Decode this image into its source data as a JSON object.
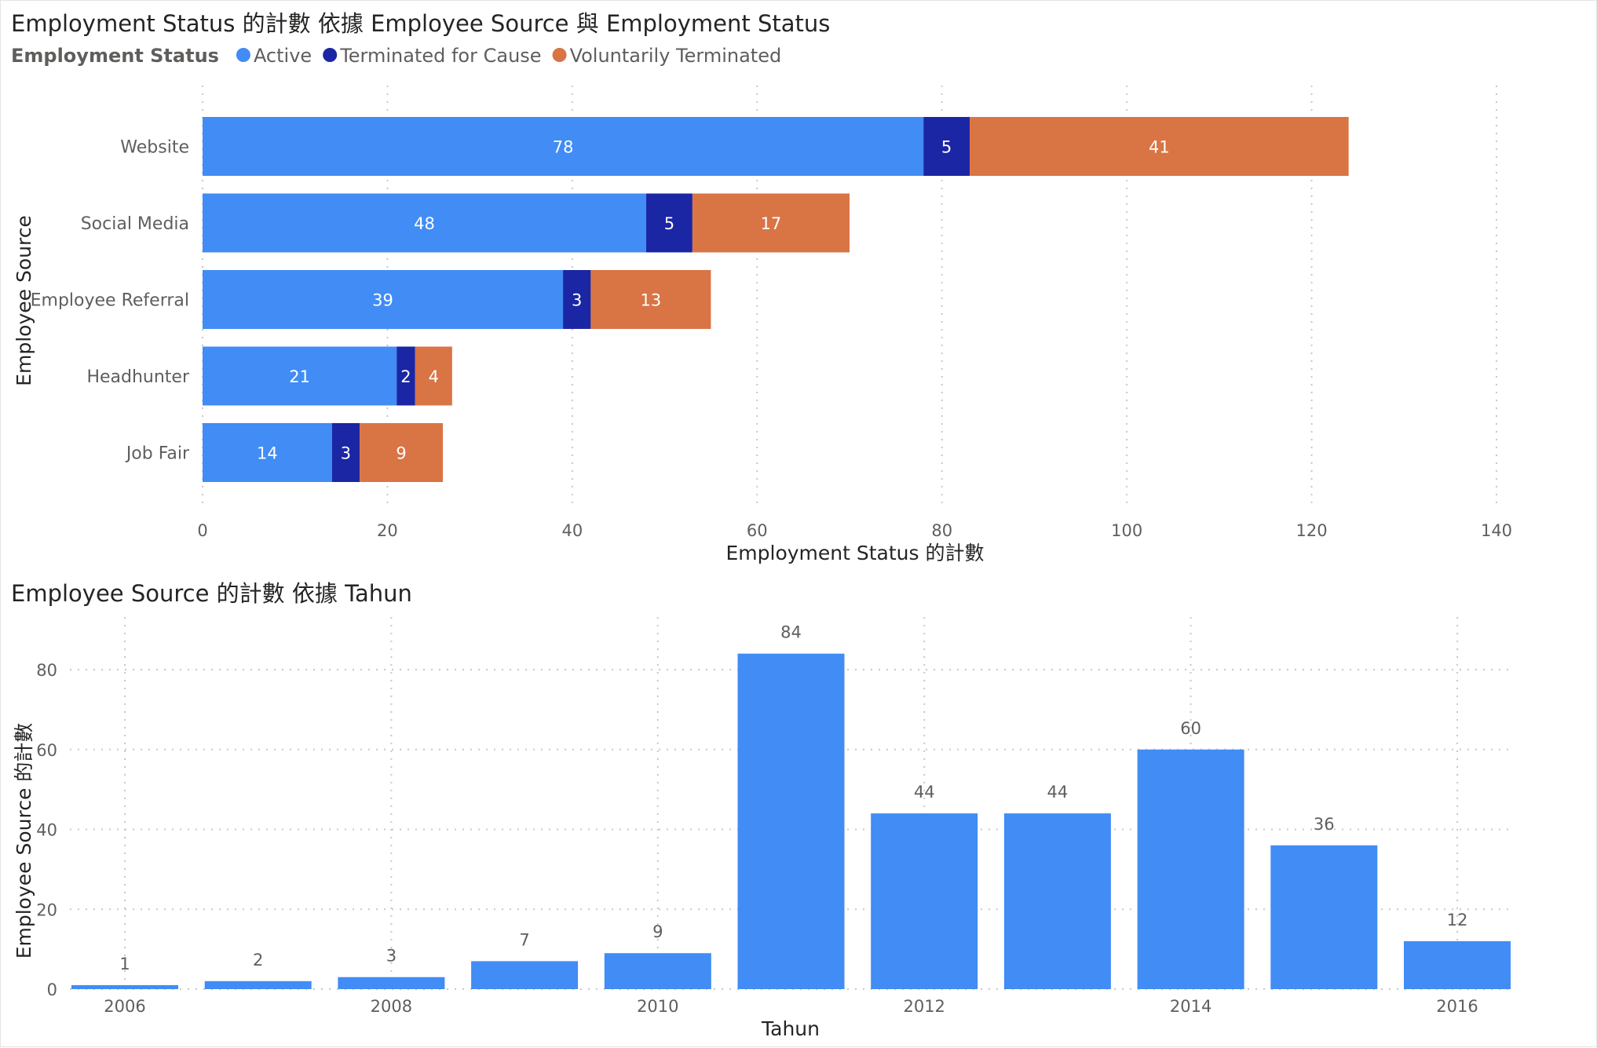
{
  "colors": {
    "active": "#418cf5",
    "terminated_for_cause": "#1b26a4",
    "voluntarily_terminated": "#d97445",
    "columns": "#418cf5"
  },
  "legend": {
    "title": "Employment Status",
    "items": [
      {
        "label": "Active",
        "color": "#418cf5"
      },
      {
        "label": "Terminated for Cause",
        "color": "#1b26a4"
      },
      {
        "label": "Voluntarily Terminated",
        "color": "#d97445"
      }
    ]
  },
  "chart_data": [
    {
      "type": "bar",
      "orientation": "horizontal",
      "stacked": true,
      "title": "Employment Status 的計數 依據 Employee Source 與 Employment Status",
      "xlabel": "Employment Status 的計數",
      "ylabel": "Employee Source",
      "categories": [
        "Website",
        "Social Media",
        "Employee Referral",
        "Headhunter",
        "Job Fair"
      ],
      "series": [
        {
          "name": "Active",
          "values": [
            78,
            48,
            39,
            21,
            14
          ]
        },
        {
          "name": "Terminated for Cause",
          "values": [
            5,
            5,
            3,
            2,
            3
          ]
        },
        {
          "name": "Voluntarily Terminated",
          "values": [
            41,
            17,
            13,
            4,
            9
          ]
        }
      ],
      "xlim": [
        0,
        140
      ],
      "xticks": [
        "0",
        "20",
        "40",
        "60",
        "80",
        "100",
        "120",
        "140"
      ],
      "grid": true,
      "legend_position": "top-left"
    },
    {
      "type": "bar",
      "orientation": "vertical",
      "title": "Employee Source 的計數 依據 Tahun",
      "xlabel": "Tahun",
      "ylabel": "Employee Source 的計數",
      "x": [
        2006,
        2007,
        2008,
        2009,
        2010,
        2011,
        2012,
        2013,
        2014,
        2015,
        2016
      ],
      "values": [
        1,
        2,
        3,
        7,
        9,
        84,
        44,
        44,
        60,
        36,
        12
      ],
      "xticks": [
        "2006",
        "2008",
        "2010",
        "2012",
        "2014",
        "2016"
      ],
      "ylim": [
        0,
        90
      ],
      "yticks": [
        "0",
        "20",
        "40",
        "60",
        "80"
      ],
      "grid": true
    }
  ]
}
